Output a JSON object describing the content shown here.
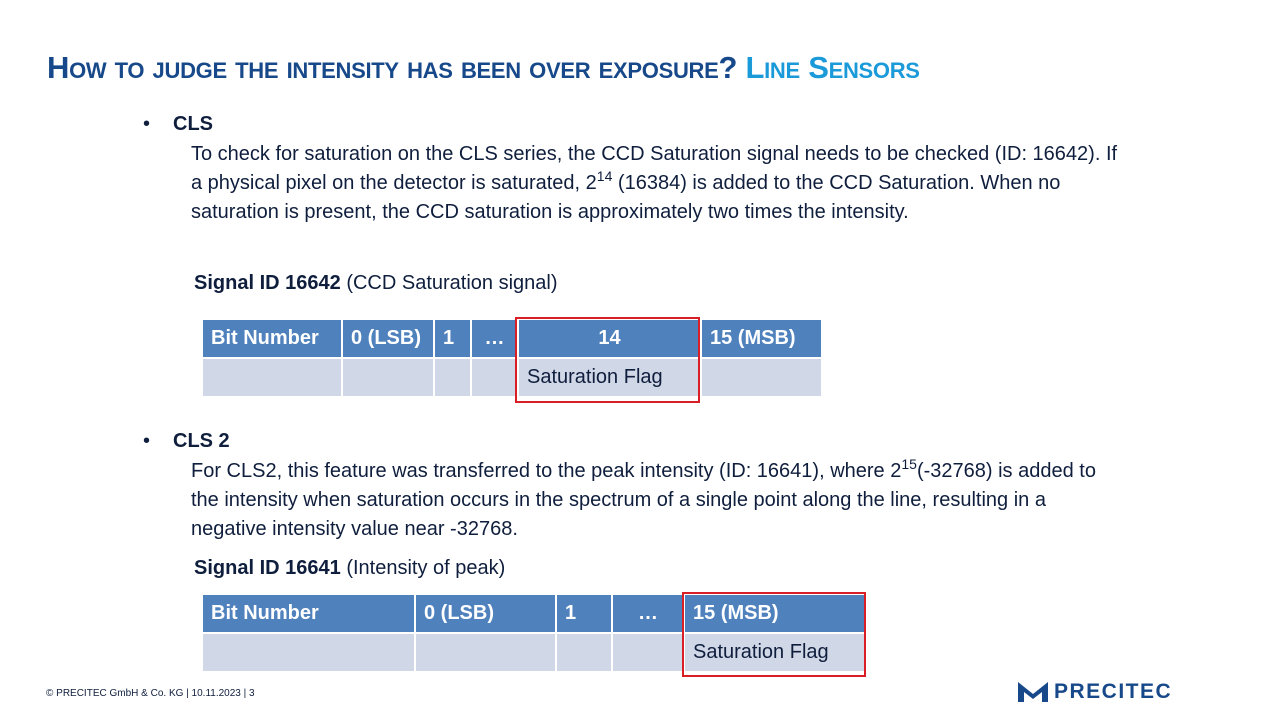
{
  "title": {
    "main": "How to judge the intensity has been over exposure?",
    "accent": "Line Sensors"
  },
  "sections": [
    {
      "heading": "CLS",
      "paragraph": {
        "part1": "To check for saturation on the CLS series, the CCD Saturation signal needs to be checked (ID: 16642).  If a physical pixel on the detector is saturated, ",
        "base": "2",
        "exp": "14",
        "part2": " (16384) is added to the CCD Saturation. When no saturation is present, the CCD saturation is approximately two times the intensity."
      },
      "signal_label": "Signal ID 16642",
      "signal_desc": "(CCD Saturation signal)",
      "table": {
        "headers": [
          "Bit Number",
          "0 (LSB)",
          "1",
          "…",
          "14",
          "15 (MSB)"
        ],
        "row": [
          "",
          "",
          "",
          "",
          "Saturation Flag",
          ""
        ]
      }
    },
    {
      "heading": "CLS 2",
      "paragraph": {
        "part1": "For CLS2, this feature was transferred to the peak intensity (ID: 16641), where ",
        "base": "2",
        "exp": "15",
        "part2": "(-32768) is added to the intensity when saturation occurs in the spectrum of a single point along the line, resulting in a negative intensity value near -32768."
      },
      "signal_label": "Signal ID 16641",
      "signal_desc": "(Intensity of peak)",
      "table": {
        "headers": [
          "Bit Number",
          "0 (LSB)",
          "1",
          "…",
          "15 (MSB)"
        ],
        "row": [
          "",
          "",
          "",
          "",
          "Saturation Flag"
        ]
      }
    }
  ],
  "footer": "© PRECITEC  GmbH  & Co. KG | 10.11.2023 | 3",
  "logo": {
    "text": "PRECITEC",
    "icon": "precitec-logo-icon"
  },
  "colors": {
    "title": "#17498a",
    "accent": "#1b9ad9",
    "table_header": "#4f81bd",
    "table_body": "#d0d7e6",
    "highlight": "#d91e26"
  }
}
